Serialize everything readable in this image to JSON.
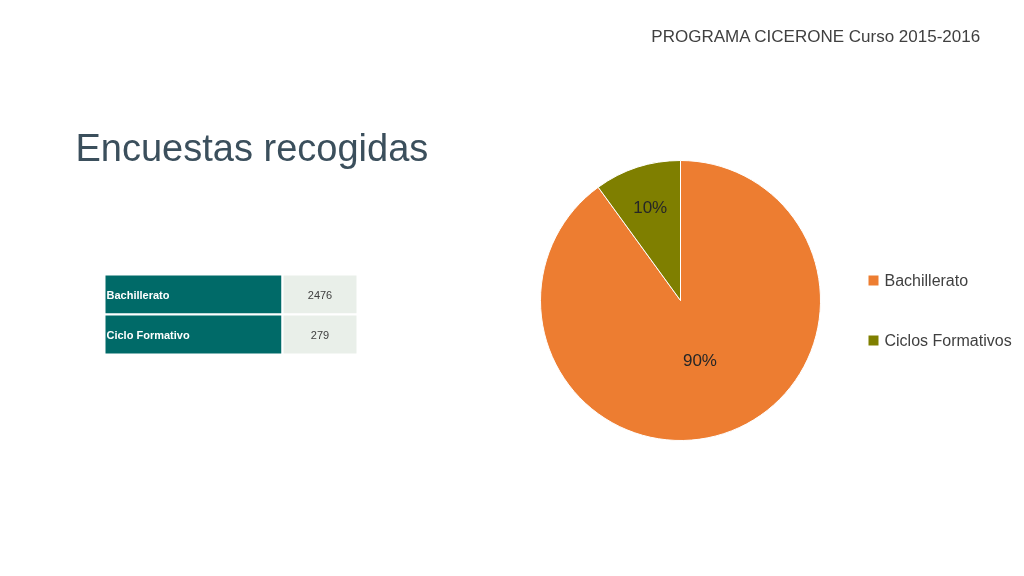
{
  "chart_data": [
    {
      "type": "other",
      "annotations": [
        "PROGRAMA CICERONE   Curso 2015-2016"
      ],
      "title": "Encuestas recogidas",
      "categories": [
        "Bachillerato",
        "Ciclo Formativo"
      ],
      "values": [
        2476,
        279
      ],
      "data_labels": true
    },
    {
      "type": "pie",
      "categories": [
        "Bachillerato",
        "Ciclos Formativos"
      ],
      "values": [
        90,
        10
      ],
      "value_labels": [
        "90%",
        "10%"
      ],
      "colors": [
        "#ed7d31",
        "#7f7f00"
      ],
      "legend": "right"
    }
  ]
}
